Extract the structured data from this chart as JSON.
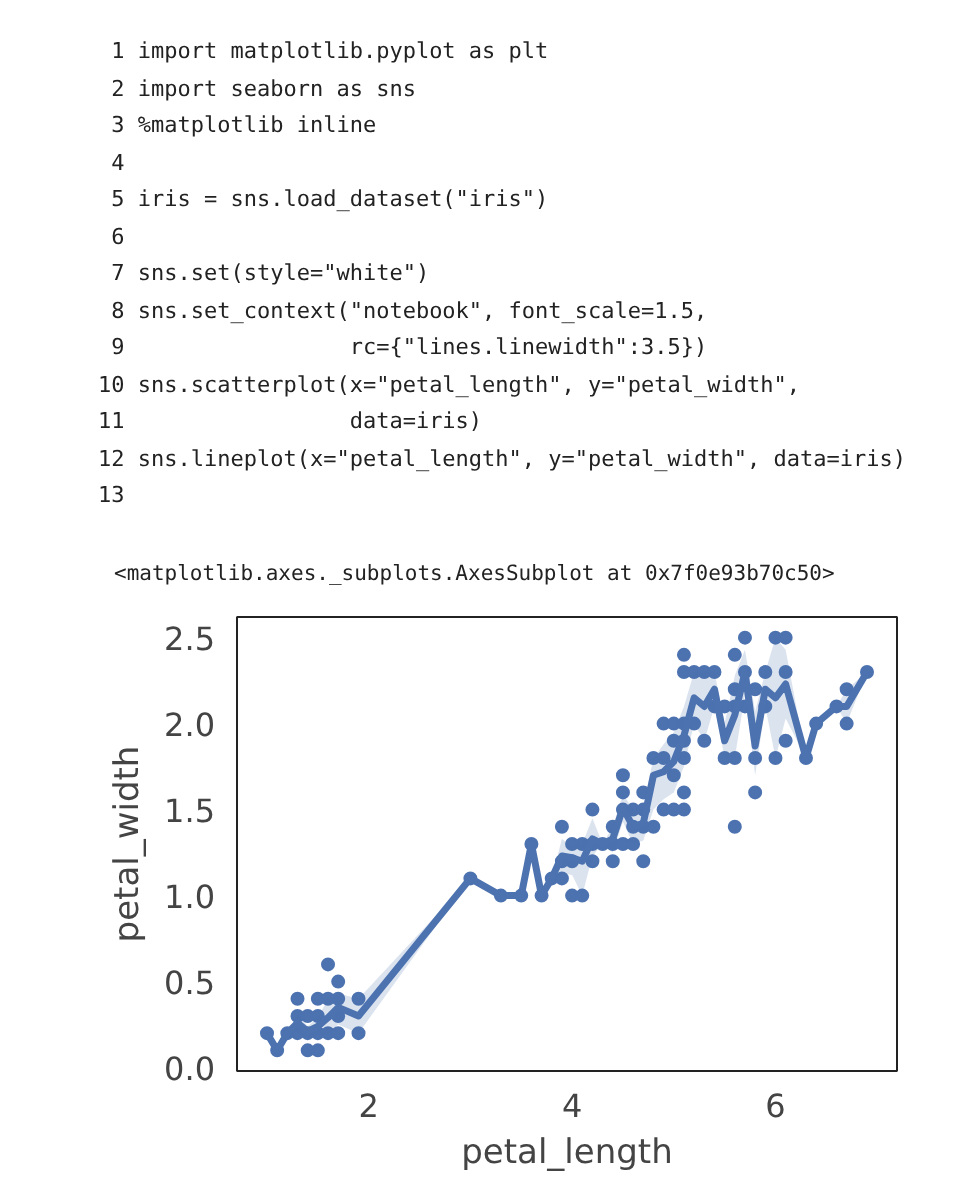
{
  "chart_data": {
    "type": "scatter",
    "xlabel": "petal_length",
    "ylabel": "petal_width",
    "annotations": [
      " 1 import matplotlib.pyplot as plt",
      " 2 import seaborn as sns",
      " 3 %matplotlib inline",
      " 4",
      " 5 iris = sns.load_dataset(\"iris\")",
      " 6",
      " 7 sns.set(style=\"white\")",
      " 8 sns.set_context(\"notebook\", font_scale=1.5,",
      " 9                 rc={\"lines.linewidth\":3.5})",
      "10 sns.scatterplot(x=\"petal_length\", y=\"petal_width\",",
      "11                 data=iris)",
      "12 sns.lineplot(x=\"petal_length\", y=\"petal_width\", data=iris)",
      "13",
      "<matplotlib.axes._subplots.AxesSubplot at 0x7f0e93b70c50>"
    ],
    "xlim": [
      0.705,
      7.195
    ],
    "ylim": [
      -0.02,
      2.62
    ],
    "xticks": [
      2,
      4,
      6
    ],
    "yticks": [
      {
        "value": 0,
        "label": "0.0"
      },
      {
        "value": 0.5,
        "label": "0.5"
      },
      {
        "value": 1,
        "label": "1.0"
      },
      {
        "value": 1.5,
        "label": "1.5"
      },
      {
        "value": 2,
        "label": "2.0"
      },
      {
        "value": 2.5,
        "label": "2.5"
      }
    ],
    "grid": false,
    "series": [
      {
        "color": "#4c72b0",
        "marker": "circle",
        "x": [
          1.0,
          1.1,
          1.2,
          1.3,
          1.3,
          1.3,
          1.4,
          1.4,
          1.4,
          1.5,
          1.5,
          1.5,
          1.5,
          1.6,
          1.6,
          1.6,
          1.7,
          1.7,
          1.7,
          1.7,
          1.9,
          1.9,
          3.0,
          3.3,
          3.5,
          3.6,
          3.7,
          3.8,
          3.9,
          3.9,
          3.9,
          4.0,
          4.0,
          4.0,
          4.1,
          4.1,
          4.2,
          4.2,
          4.2,
          4.3,
          4.4,
          4.4,
          4.4,
          4.5,
          4.5,
          4.5,
          4.5,
          4.6,
          4.6,
          4.6,
          4.7,
          4.7,
          4.7,
          4.7,
          4.8,
          4.8,
          4.9,
          4.9,
          4.9,
          5.0,
          5.0,
          5.0,
          5.0,
          5.1,
          5.1,
          5.1,
          5.1,
          5.1,
          5.1,
          5.1,
          5.2,
          5.2,
          5.3,
          5.3,
          5.4,
          5.4,
          5.5,
          5.5,
          5.6,
          5.6,
          5.6,
          5.6,
          5.6,
          5.7,
          5.7,
          5.7,
          5.8,
          5.8,
          5.8,
          5.9,
          5.9,
          6.0,
          6.0,
          6.1,
          6.1,
          6.1,
          6.3,
          6.4,
          6.6,
          6.7,
          6.7,
          6.9
        ],
        "values": [
          0.2,
          0.1,
          0.2,
          0.2,
          0.3,
          0.4,
          0.1,
          0.2,
          0.3,
          0.1,
          0.2,
          0.3,
          0.4,
          0.2,
          0.4,
          0.6,
          0.2,
          0.3,
          0.4,
          0.5,
          0.2,
          0.4,
          1.1,
          1.0,
          1.0,
          1.3,
          1.0,
          1.1,
          1.1,
          1.2,
          1.4,
          1.0,
          1.2,
          1.3,
          1.0,
          1.3,
          1.2,
          1.3,
          1.5,
          1.3,
          1.2,
          1.3,
          1.4,
          1.3,
          1.5,
          1.6,
          1.7,
          1.3,
          1.4,
          1.5,
          1.2,
          1.4,
          1.5,
          1.6,
          1.4,
          1.8,
          1.5,
          1.8,
          2.0,
          1.5,
          1.7,
          1.9,
          2.0,
          1.5,
          1.6,
          1.8,
          1.9,
          2.0,
          2.3,
          2.4,
          2.0,
          2.3,
          1.9,
          2.3,
          2.1,
          2.3,
          1.8,
          2.1,
          1.4,
          1.8,
          2.1,
          2.2,
          2.4,
          2.1,
          2.3,
          2.5,
          1.6,
          1.8,
          2.2,
          2.1,
          2.3,
          1.8,
          2.5,
          1.9,
          2.3,
          2.5,
          1.8,
          2.0,
          2.1,
          2.0,
          2.2,
          2.3
        ]
      },
      {
        "type": "line",
        "color": "#4c72b0",
        "x": [
          1.0,
          1.1,
          1.2,
          1.3,
          1.4,
          1.5,
          1.6,
          1.7,
          1.9,
          3.0,
          3.3,
          3.5,
          3.6,
          3.7,
          3.8,
          3.9,
          4.0,
          4.1,
          4.2,
          4.3,
          4.4,
          4.5,
          4.6,
          4.7,
          4.8,
          4.9,
          5.0,
          5.1,
          5.2,
          5.3,
          5.4,
          5.5,
          5.6,
          5.7,
          5.8,
          5.9,
          6.0,
          6.1,
          6.3,
          6.4,
          6.6,
          6.7,
          6.9
        ],
        "values": [
          0.2,
          0.1,
          0.2,
          0.26,
          0.21,
          0.24,
          0.29,
          0.35,
          0.3,
          1.1,
          1.0,
          1.0,
          1.3,
          1.0,
          1.1,
          1.23,
          1.22,
          1.2,
          1.33,
          1.3,
          1.33,
          1.51,
          1.4,
          1.42,
          1.7,
          1.72,
          1.78,
          1.93,
          2.15,
          2.1,
          2.2,
          1.9,
          2.05,
          2.3,
          1.87,
          2.2,
          2.15,
          2.23,
          1.8,
          2.0,
          2.1,
          2.1,
          2.3
        ],
        "lower": [
          0.2,
          0.1,
          0.2,
          0.21,
          0.17,
          0.19,
          0.2,
          0.25,
          0.2,
          1.1,
          1.0,
          1.0,
          1.3,
          1.0,
          1.1,
          1.13,
          1.12,
          1.0,
          1.23,
          1.3,
          1.25,
          1.43,
          1.3,
          1.32,
          1.5,
          1.56,
          1.6,
          1.75,
          2.0,
          1.9,
          2.1,
          1.8,
          1.8,
          2.17,
          1.7,
          2.1,
          1.8,
          2.03,
          1.8,
          2.0,
          2.1,
          2.0,
          2.3
        ],
        "upper": [
          0.2,
          0.1,
          0.2,
          0.31,
          0.24,
          0.29,
          0.4,
          0.43,
          0.4,
          1.1,
          1.0,
          1.0,
          1.3,
          1.0,
          1.1,
          1.33,
          1.28,
          1.3,
          1.45,
          1.3,
          1.4,
          1.59,
          1.5,
          1.52,
          1.8,
          1.88,
          1.95,
          2.1,
          2.3,
          2.3,
          2.3,
          2.0,
          2.28,
          2.43,
          2.07,
          2.3,
          2.5,
          2.43,
          1.8,
          2.0,
          2.1,
          2.2,
          2.3
        ]
      }
    ]
  }
}
